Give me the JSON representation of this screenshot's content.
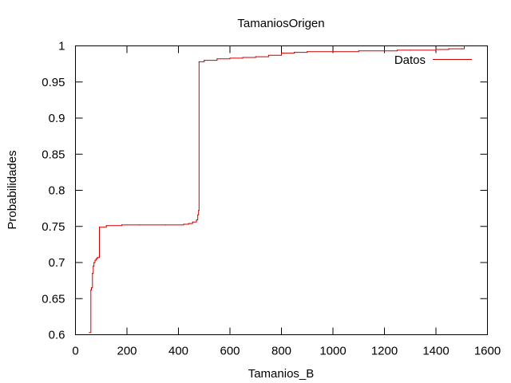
{
  "chart_data": {
    "type": "line",
    "title": "TamaniosOrigen",
    "xlabel": "Tamanios_B",
    "ylabel": "Probabilidades",
    "xlim": [
      0,
      1600
    ],
    "ylim": [
      0.6,
      1
    ],
    "xticks": [
      "0",
      "200",
      "400",
      "600",
      "800",
      "1000",
      "1200",
      "1400",
      "1600"
    ],
    "yticks": [
      "0.6",
      "0.65",
      "0.7",
      "0.75",
      "0.8",
      "0.85",
      "0.9",
      "0.95",
      "1"
    ],
    "grid": false,
    "legend_position": "top-right",
    "series": [
      {
        "name": "Datos",
        "color": "#cc0000",
        "step": true,
        "x": [
          54,
          60,
          62,
          66,
          69,
          72,
          76,
          80,
          85,
          93,
          120,
          180,
          250,
          350,
          420,
          440,
          455,
          470,
          475,
          478,
          480,
          500,
          550,
          600,
          650,
          700,
          750,
          800,
          850,
          900,
          1000,
          1100,
          1200,
          1250,
          1300,
          1400,
          1450,
          1500,
          1510
        ],
        "y": [
          0.603,
          0.662,
          0.665,
          0.685,
          0.695,
          0.7,
          0.703,
          0.705,
          0.707,
          0.749,
          0.751,
          0.752,
          0.752,
          0.752,
          0.753,
          0.754,
          0.756,
          0.759,
          0.766,
          0.772,
          0.978,
          0.98,
          0.982,
          0.983,
          0.984,
          0.985,
          0.987,
          0.99,
          0.991,
          0.992,
          0.992,
          0.993,
          0.993,
          0.994,
          0.994,
          0.995,
          0.996,
          0.996,
          0.999
        ]
      }
    ]
  }
}
